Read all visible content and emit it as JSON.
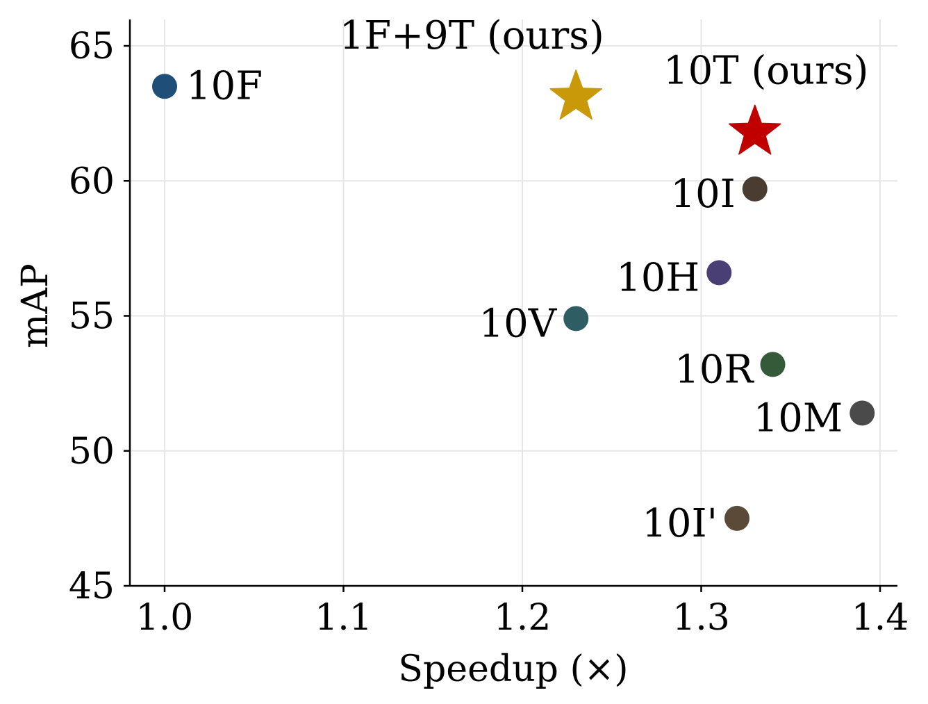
{
  "chart_data": {
    "type": "scatter",
    "xlabel": "Speedup (×)",
    "ylabel": "mAP",
    "xlim": [
      0.98,
      1.41
    ],
    "ylim": [
      45,
      66
    ],
    "xticks": [
      "1.0",
      "1.1",
      "1.2",
      "1.3",
      "1.4"
    ],
    "yticks": [
      "45",
      "50",
      "55",
      "60",
      "65"
    ],
    "grid": true,
    "points": [
      {
        "label": "10F",
        "x": 1.0,
        "y": 63.5,
        "marker": "circle",
        "color": "#1f4e79",
        "label_side": "right"
      },
      {
        "label": "1F+9T (ours)",
        "x": 1.23,
        "y": 63.1,
        "marker": "star",
        "color": "#c9990a",
        "label_side": "above"
      },
      {
        "label": "10T (ours)",
        "x": 1.33,
        "y": 61.8,
        "marker": "star",
        "color": "#c00000",
        "label_side": "above"
      },
      {
        "label": "10I",
        "x": 1.33,
        "y": 59.7,
        "marker": "circle",
        "color": "#4a3c30",
        "label_side": "left"
      },
      {
        "label": "10H",
        "x": 1.31,
        "y": 56.6,
        "marker": "circle",
        "color": "#4a3f74",
        "label_side": "left"
      },
      {
        "label": "10V",
        "x": 1.23,
        "y": 54.9,
        "marker": "circle",
        "color": "#2e5e63",
        "label_side": "left"
      },
      {
        "label": "10R",
        "x": 1.34,
        "y": 53.2,
        "marker": "circle",
        "color": "#345a3a",
        "label_side": "left"
      },
      {
        "label": "10M",
        "x": 1.39,
        "y": 51.4,
        "marker": "circle",
        "color": "#4a4a4a",
        "label_side": "left"
      },
      {
        "label": "10I'",
        "x": 1.32,
        "y": 47.5,
        "marker": "circle",
        "color": "#5c4a38",
        "label_side": "left"
      }
    ]
  }
}
